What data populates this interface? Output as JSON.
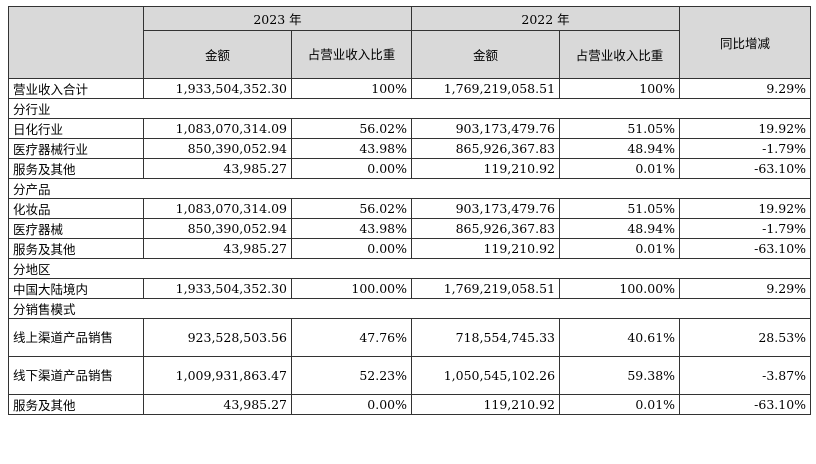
{
  "header": {
    "year_2023": "2023 年",
    "year_2022": "2022 年",
    "amount": "金额",
    "ratio": "占营业收入比重",
    "yoy": "同比增减"
  },
  "total": {
    "label": "营业收入合计",
    "v2023": "1,933,504,352.30",
    "r2023": "100%",
    "v2022": "1,769,219,058.51",
    "r2022": "100%",
    "yoy": "9.29%"
  },
  "sections": [
    {
      "title": "分行业",
      "rows": [
        {
          "label": "日化行业",
          "v2023": "1,083,070,314.09",
          "r2023": "56.02%",
          "v2022": "903,173,479.76",
          "r2022": "51.05%",
          "yoy": "19.92%"
        },
        {
          "label": "医疗器械行业",
          "v2023": "850,390,052.94",
          "r2023": "43.98%",
          "v2022": "865,926,367.83",
          "r2022": "48.94%",
          "yoy": "-1.79%"
        },
        {
          "label": "服务及其他",
          "v2023": "43,985.27",
          "r2023": "0.00%",
          "v2022": "119,210.92",
          "r2022": "0.01%",
          "yoy": "-63.10%"
        }
      ]
    },
    {
      "title": "分产品",
      "rows": [
        {
          "label": "化妆品",
          "v2023": "1,083,070,314.09",
          "r2023": "56.02%",
          "v2022": "903,173,479.76",
          "r2022": "51.05%",
          "yoy": "19.92%"
        },
        {
          "label": "医疗器械",
          "v2023": "850,390,052.94",
          "r2023": "43.98%",
          "v2022": "865,926,367.83",
          "r2022": "48.94%",
          "yoy": "-1.79%"
        },
        {
          "label": "服务及其他",
          "v2023": "43,985.27",
          "r2023": "0.00%",
          "v2022": "119,210.92",
          "r2022": "0.01%",
          "yoy": "-63.10%"
        }
      ]
    },
    {
      "title": "分地区",
      "rows": [
        {
          "label": "中国大陆境内",
          "v2023": "1,933,504,352.30",
          "r2023": "100.00%",
          "v2022": "1,769,219,058.51",
          "r2022": "100.00%",
          "yoy": "9.29%"
        }
      ]
    },
    {
      "title": "分销售模式",
      "rows": [
        {
          "label": "线上渠道产品销售",
          "v2023": "923,528,503.56",
          "r2023": "47.76%",
          "v2022": "718,554,745.33",
          "r2022": "40.61%",
          "yoy": "28.53%"
        },
        {
          "label": "线下渠道产品销售",
          "v2023": "1,009,931,863.47",
          "r2023": "52.23%",
          "v2022": "1,050,545,102.26",
          "r2022": "59.38%",
          "yoy": "-3.87%"
        },
        {
          "label": "服务及其他",
          "v2023": "43,985.27",
          "r2023": "0.00%",
          "v2022": "119,210.92",
          "r2022": "0.01%",
          "yoy": "-63.10%"
        }
      ]
    }
  ]
}
